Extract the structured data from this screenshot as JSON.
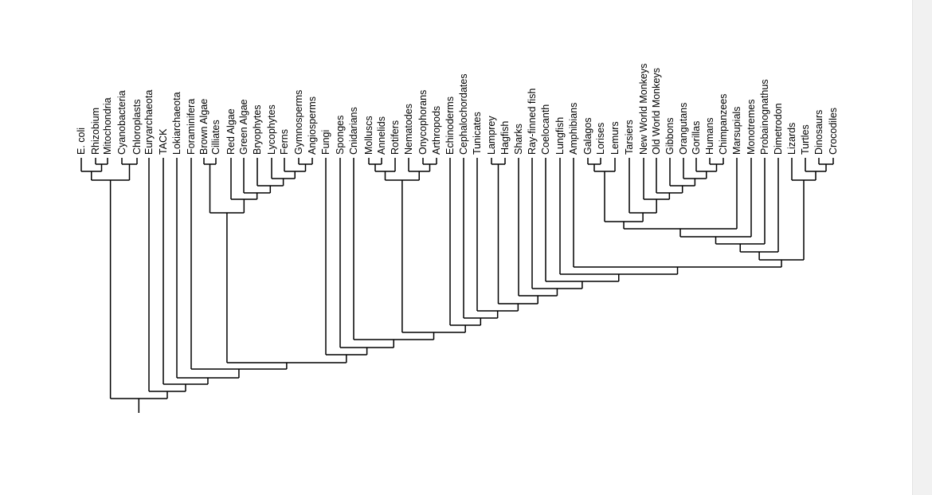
{
  "diagram": {
    "type": "phylogenetic-tree",
    "colors": {
      "background": "#ffffff",
      "line": "#000000",
      "text": "#000000",
      "scrollbar_track": "#f1f1f1"
    },
    "taxa": [
      "E. coli",
      "Rhizobium",
      "Mitochondria",
      "Cyanobacteria",
      "Chloroplasts",
      "Euryarchaeota",
      "TACK",
      "Lokiarchaeota",
      "Foraminifera",
      "Brown Algae",
      "Cilliates",
      "Red Algae",
      "Green Algae",
      "Bryophytes",
      "Lycophytes",
      "Ferns",
      "Gymnosperms",
      "Angiosperms",
      "Fungi",
      "Sponges",
      "Cnidarians",
      "Molluscs",
      "Annelids",
      "Rotifers",
      "Nematodes",
      "Onycophorans",
      "Arthropods",
      "Echinoderms",
      "Cephalochordates",
      "Tunicates",
      "Lamprey",
      "Hagfish",
      "Sharks",
      "Ray-finned fish",
      "Coelocanth",
      "Lungfish",
      "Amphibians",
      "Galagos",
      "Lorises",
      "Lemurs",
      "Tarsiers",
      "New World Monkeys",
      "Old World Monkeys",
      "Gibbons",
      "Orangutans",
      "Gorillas",
      "Humans",
      "Chimpanzees",
      "Marsupials",
      "Monotremes",
      "Probainognathus",
      "Dimetrodon",
      "Lizards",
      "Turtles",
      "Dinosaurs",
      "Crocodiles"
    ]
  }
}
